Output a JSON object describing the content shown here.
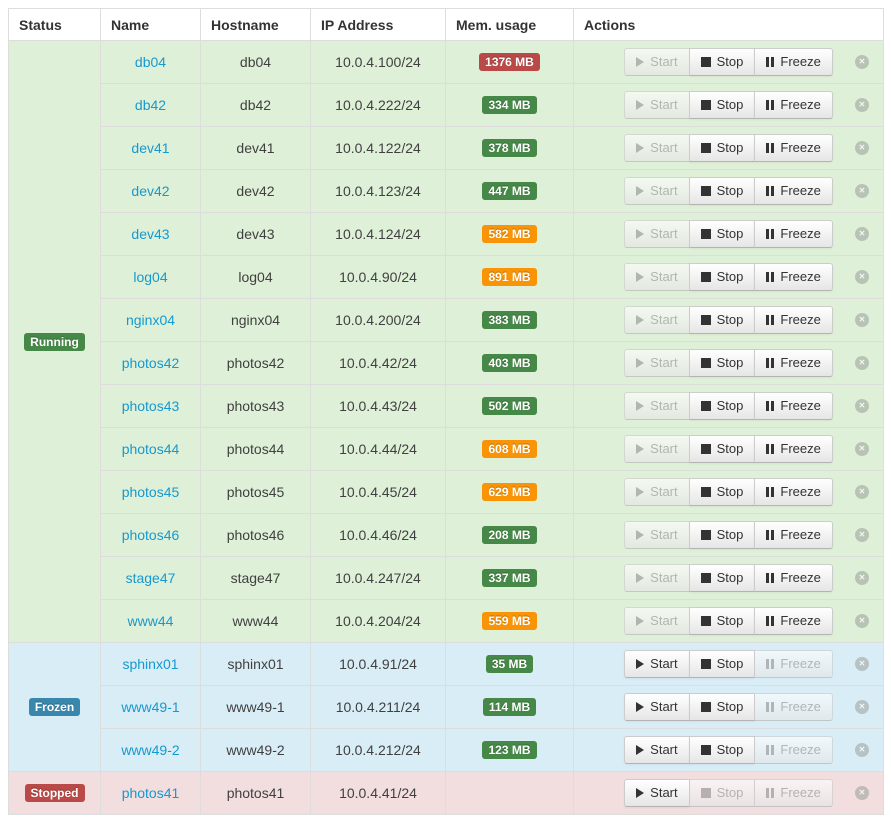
{
  "colors": {
    "running_bg": "#dff0d8",
    "frozen_bg": "#d9edf7",
    "stopped_bg": "#f2dede",
    "running_badge": "#468847",
    "frozen_badge": "#3a87ad",
    "stopped_badge": "#b94a48",
    "mem_green": "#468847",
    "mem_orange": "#f89406",
    "mem_red": "#b94a48",
    "link": "#1699cf",
    "table_border": "#dddddd"
  },
  "icons": {
    "start": "play-triangle",
    "stop": "black-square",
    "freeze": "pause-bars",
    "destroy": "circle-x",
    "destroy_glyph": "✕"
  },
  "actions": {
    "start": "Start",
    "stop": "Stop",
    "freeze": "Freeze"
  },
  "table": {
    "columns": [
      {
        "key": "status",
        "label": "Status"
      },
      {
        "key": "name",
        "label": "Name"
      },
      {
        "key": "hostname",
        "label": "Hostname"
      },
      {
        "key": "ip",
        "label": "IP Address"
      },
      {
        "key": "mem",
        "label": "Mem. usage"
      },
      {
        "key": "actions",
        "label": "Actions"
      }
    ],
    "groups": [
      {
        "status": "Running",
        "status_key": "running",
        "badge_color": "#468847",
        "buttons": {
          "start": false,
          "stop": true,
          "freeze": true
        },
        "rows": [
          {
            "name": "db04",
            "hostname": "db04",
            "ip": "10.0.4.100/24",
            "mem": "1376 MB",
            "mem_color": "#b94a48"
          },
          {
            "name": "db42",
            "hostname": "db42",
            "ip": "10.0.4.222/24",
            "mem": "334 MB",
            "mem_color": "#468847"
          },
          {
            "name": "dev41",
            "hostname": "dev41",
            "ip": "10.0.4.122/24",
            "mem": "378 MB",
            "mem_color": "#468847"
          },
          {
            "name": "dev42",
            "hostname": "dev42",
            "ip": "10.0.4.123/24",
            "mem": "447 MB",
            "mem_color": "#468847"
          },
          {
            "name": "dev43",
            "hostname": "dev43",
            "ip": "10.0.4.124/24",
            "mem": "582 MB",
            "mem_color": "#f89406"
          },
          {
            "name": "log04",
            "hostname": "log04",
            "ip": "10.0.4.90/24",
            "mem": "891 MB",
            "mem_color": "#f89406"
          },
          {
            "name": "nginx04",
            "hostname": "nginx04",
            "ip": "10.0.4.200/24",
            "mem": "383 MB",
            "mem_color": "#468847"
          },
          {
            "name": "photos42",
            "hostname": "photos42",
            "ip": "10.0.4.42/24",
            "mem": "403 MB",
            "mem_color": "#468847"
          },
          {
            "name": "photos43",
            "hostname": "photos43",
            "ip": "10.0.4.43/24",
            "mem": "502 MB",
            "mem_color": "#468847"
          },
          {
            "name": "photos44",
            "hostname": "photos44",
            "ip": "10.0.4.44/24",
            "mem": "608 MB",
            "mem_color": "#f89406"
          },
          {
            "name": "photos45",
            "hostname": "photos45",
            "ip": "10.0.4.45/24",
            "mem": "629 MB",
            "mem_color": "#f89406"
          },
          {
            "name": "photos46",
            "hostname": "photos46",
            "ip": "10.0.4.46/24",
            "mem": "208 MB",
            "mem_color": "#468847"
          },
          {
            "name": "stage47",
            "hostname": "stage47",
            "ip": "10.0.4.247/24",
            "mem": "337 MB",
            "mem_color": "#468847"
          },
          {
            "name": "www44",
            "hostname": "www44",
            "ip": "10.0.4.204/24",
            "mem": "559 MB",
            "mem_color": "#f89406"
          }
        ]
      },
      {
        "status": "Frozen",
        "status_key": "frozen",
        "badge_color": "#3a87ad",
        "buttons": {
          "start": true,
          "stop": true,
          "freeze": false
        },
        "rows": [
          {
            "name": "sphinx01",
            "hostname": "sphinx01",
            "ip": "10.0.4.91/24",
            "mem": "35 MB",
            "mem_color": "#468847"
          },
          {
            "name": "www49-1",
            "hostname": "www49-1",
            "ip": "10.0.4.211/24",
            "mem": "114 MB",
            "mem_color": "#468847"
          },
          {
            "name": "www49-2",
            "hostname": "www49-2",
            "ip": "10.0.4.212/24",
            "mem": "123 MB",
            "mem_color": "#468847"
          }
        ]
      },
      {
        "status": "Stopped",
        "status_key": "stopped",
        "badge_color": "#b94a48",
        "buttons": {
          "start": true,
          "stop": false,
          "freeze": false
        },
        "rows": [
          {
            "name": "photos41",
            "hostname": "photos41",
            "ip": "10.0.4.41/24",
            "mem": "",
            "mem_color": ""
          }
        ]
      }
    ]
  }
}
